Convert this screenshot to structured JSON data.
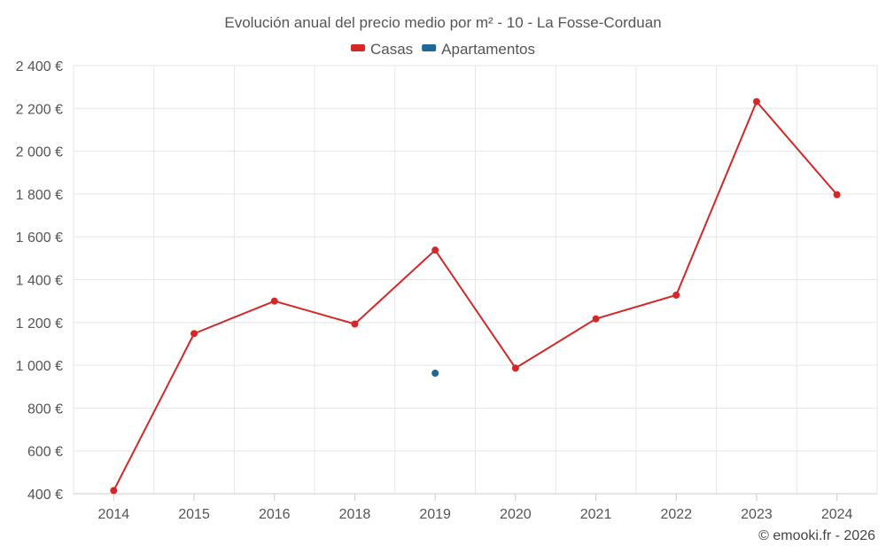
{
  "chart_data": {
    "type": "line",
    "title": "Evolución anual del precio medio por m² - 10 - La Fosse-Corduan",
    "categories": [
      "2014",
      "2015",
      "2016",
      "2018",
      "2019",
      "2020",
      "2021",
      "2022",
      "2023",
      "2024"
    ],
    "ylim": [
      400,
      2400
    ],
    "yticks": [
      400,
      600,
      800,
      1000,
      1200,
      1400,
      1600,
      1800,
      2000,
      2200,
      2400
    ],
    "ytick_labels": [
      "400 €",
      "600 €",
      "800 €",
      "1 000 €",
      "1 200 €",
      "1 400 €",
      "1 600 €",
      "1 800 €",
      "2 000 €",
      "2 200 €",
      "2 400 €"
    ],
    "grid": true,
    "legend_position": "top-center",
    "series": [
      {
        "name": "Casas",
        "color": "#d62728",
        "values": [
          415,
          1148,
          1300,
          1193,
          1538,
          987,
          1217,
          1328,
          2232,
          1797
        ]
      },
      {
        "name": "Apartamentos",
        "color": "#1f6699",
        "values": [
          null,
          null,
          null,
          null,
          963,
          null,
          null,
          null,
          null,
          null
        ]
      }
    ]
  },
  "credit": "© emooki.fr - 2026"
}
